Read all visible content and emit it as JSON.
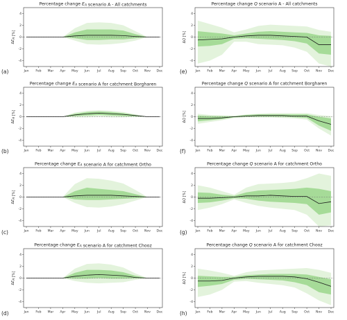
{
  "figure": {
    "colors": {
      "outer_band": "#e3f3dc",
      "inner_band": "#a6db98",
      "median_line": "#1a1a1a",
      "zero_line": "#777777",
      "axis": "#333333"
    },
    "months": [
      "Jan",
      "Feb",
      "Mar",
      "Apr",
      "May",
      "Jun",
      "Jul",
      "Aug",
      "Sep",
      "Oct",
      "Nov",
      "Dec"
    ]
  },
  "chart_data": [
    {
      "type": "area",
      "panel": "(a)",
      "title": "Percentage change E_A scenario A - All catchments",
      "ylabel": "ΔE_A [%]",
      "ylim": [
        -5,
        5
      ],
      "yticks": [
        -4,
        -2,
        0,
        2,
        4
      ],
      "median": [
        0,
        0,
        0,
        0,
        0.2,
        0.3,
        0.3,
        0.3,
        0.25,
        0.1,
        0,
        0
      ],
      "inner": {
        "lower": [
          0,
          0,
          0,
          0,
          -0.2,
          -0.5,
          -0.5,
          -0.4,
          -0.4,
          -0.2,
          0,
          0
        ],
        "upper": [
          0,
          0,
          0,
          0,
          0.8,
          1.3,
          1.3,
          1.3,
          1.1,
          0.5,
          0,
          0
        ]
      },
      "outer": {
        "lower": [
          0,
          0,
          0,
          0,
          -0.6,
          -1.2,
          -1.3,
          -1.2,
          -1.0,
          -0.6,
          0,
          0
        ],
        "upper": [
          0,
          0,
          0,
          0,
          1.5,
          2.4,
          2.5,
          2.4,
          2.0,
          1.0,
          0,
          0
        ]
      }
    },
    {
      "type": "area",
      "panel": "(e)",
      "title": "Percentage change Q scenario A - All catchments",
      "ylabel": "ΔQ [%]",
      "ylim": [
        -5,
        5
      ],
      "yticks": [
        -4,
        -2,
        0,
        2,
        4
      ],
      "median": [
        -0.5,
        -0.4,
        -0.3,
        0,
        0.2,
        0.3,
        0.3,
        0.2,
        0.1,
        0,
        -1.3,
        -1.3
      ],
      "inner": {
        "lower": [
          -1.6,
          -1.5,
          -1.2,
          -0.3,
          -0.2,
          -0.3,
          -0.4,
          -0.5,
          -0.7,
          -1.1,
          -2.8,
          -3.0
        ],
        "upper": [
          1.0,
          0.8,
          0.6,
          0.3,
          0.6,
          0.9,
          1.0,
          0.9,
          0.8,
          0.7,
          0.3,
          0.2
        ]
      },
      "outer": {
        "lower": [
          -4.5,
          -4.0,
          -3.0,
          -0.8,
          -0.8,
          -1.2,
          -1.3,
          -1.4,
          -1.8,
          -2.5,
          -4.5,
          -5.0
        ],
        "upper": [
          2.8,
          2.2,
          1.6,
          0.8,
          1.3,
          1.9,
          2.1,
          2.0,
          1.9,
          1.8,
          1.2,
          0.9
        ]
      }
    },
    {
      "type": "area",
      "panel": "(b)",
      "title": "Percentage change E_A scenario A for catchment Borgharen",
      "ylabel": "ΔE_A [%]",
      "ylim": [
        -5,
        5
      ],
      "yticks": [
        -4,
        -2,
        0,
        2,
        4
      ],
      "median": [
        0,
        0,
        0,
        0,
        0.3,
        0.5,
        0.6,
        0.5,
        0.4,
        0.2,
        0,
        0
      ],
      "inner": {
        "lower": [
          0,
          0,
          0,
          0,
          0.1,
          0.2,
          0.3,
          0.2,
          0.1,
          0.05,
          0,
          0
        ],
        "upper": [
          0,
          0,
          0,
          0,
          0.5,
          0.8,
          0.9,
          0.8,
          0.6,
          0.3,
          0,
          0
        ]
      },
      "outer": {
        "lower": [
          0,
          0,
          0,
          0,
          -0.1,
          -0.1,
          0,
          -0.1,
          -0.1,
          0,
          0,
          0
        ],
        "upper": [
          0,
          0,
          0,
          0,
          0.7,
          1.0,
          1.1,
          1.0,
          0.8,
          0.4,
          0,
          0
        ]
      }
    },
    {
      "type": "area",
      "panel": "(f)",
      "title": "Percentage change Q scenario A for catchment Borgharen",
      "ylabel": "ΔQ [%]",
      "ylim": [
        -5,
        5
      ],
      "yticks": [
        -4,
        -2,
        0,
        2,
        4
      ],
      "median": [
        -0.3,
        -0.3,
        -0.2,
        0,
        0.1,
        0.2,
        0.2,
        0.2,
        0.1,
        0.1,
        -0.7,
        -1.3
      ],
      "inner": {
        "lower": [
          -0.8,
          -0.6,
          -0.4,
          -0.1,
          0,
          0,
          0,
          0,
          -0.1,
          -0.2,
          -1.5,
          -2.4
        ],
        "upper": [
          0.2,
          0.1,
          0.1,
          0.1,
          0.3,
          0.4,
          0.4,
          0.4,
          0.4,
          0.4,
          0,
          -0.3
        ]
      },
      "outer": {
        "lower": [
          -1.2,
          -0.9,
          -0.6,
          -0.2,
          -0.1,
          -0.1,
          -0.1,
          -0.2,
          -0.3,
          -0.5,
          -2.0,
          -3.2
        ],
        "upper": [
          0.5,
          0.3,
          0.2,
          0.1,
          0.4,
          0.5,
          0.6,
          0.6,
          0.6,
          0.6,
          0.3,
          0.1
        ]
      }
    },
    {
      "type": "area",
      "panel": "(c)",
      "title": "Percentage change E_A scenario A for catchment Ortho",
      "ylabel": "ΔE_A [%]",
      "ylim": [
        -5,
        5
      ],
      "yticks": [
        -4,
        -2,
        0,
        2,
        4
      ],
      "median": [
        0,
        0,
        0,
        0,
        0.2,
        0.3,
        0.3,
        0.3,
        0.2,
        0.1,
        0,
        0
      ],
      "inner": {
        "lower": [
          0,
          0,
          0,
          0,
          -0.4,
          -0.5,
          -0.5,
          -0.4,
          -0.3,
          -0.2,
          0,
          0
        ],
        "upper": [
          0,
          0,
          0,
          0,
          1.0,
          1.6,
          1.4,
          1.2,
          1.0,
          0.5,
          0,
          0
        ]
      },
      "outer": {
        "lower": [
          0,
          0,
          0,
          0,
          -1.0,
          -1.7,
          -1.8,
          -1.6,
          -1.2,
          -0.6,
          0,
          0
        ],
        "upper": [
          0,
          0,
          0,
          0,
          2.2,
          3.2,
          3.1,
          2.8,
          2.3,
          1.2,
          0,
          0
        ]
      }
    },
    {
      "type": "area",
      "panel": "(g)",
      "title": "Percentage change Q scenario A for catchment Ortho",
      "ylabel": "ΔQ [%]",
      "ylim": [
        -5,
        5
      ],
      "yticks": [
        -4,
        -2,
        0,
        2,
        4
      ],
      "median": [
        -0.2,
        -0.2,
        -0.1,
        0,
        0.2,
        0.2,
        0.3,
        0.2,
        0.1,
        0.1,
        -1.1,
        -0.8
      ],
      "inner": {
        "lower": [
          -1.0,
          -0.9,
          -0.6,
          -0.2,
          -0.3,
          -0.6,
          -0.8,
          -0.9,
          -1.0,
          -1.2,
          -3.0,
          -2.6
        ],
        "upper": [
          0.8,
          0.7,
          0.4,
          0.2,
          0.8,
          1.1,
          1.2,
          1.3,
          1.4,
          1.6,
          1.4,
          1.0
        ]
      },
      "outer": {
        "lower": [
          -2.2,
          -1.8,
          -1.2,
          -0.4,
          -1.0,
          -1.5,
          -1.8,
          -2.0,
          -2.2,
          -3.0,
          -5.0,
          -4.8
        ],
        "upper": [
          2.0,
          1.6,
          1.0,
          0.4,
          1.6,
          2.2,
          2.3,
          2.4,
          2.6,
          3.2,
          4.0,
          3.6
        ]
      }
    },
    {
      "type": "area",
      "panel": "(d)",
      "title": "Percentage change E_A scenario A for catchment Chooz",
      "ylabel": "ΔE_A [%]",
      "ylim": [
        -5,
        5
      ],
      "yticks": [
        -4,
        -2,
        0,
        2,
        4
      ],
      "median": [
        0,
        0,
        0,
        0,
        0.3,
        0.5,
        0.6,
        0.5,
        0.4,
        0.1,
        0,
        0
      ],
      "inner": {
        "lower": [
          0,
          0,
          0,
          0,
          -0.1,
          -0.1,
          0,
          -0.1,
          -0.1,
          -0.05,
          0,
          0
        ],
        "upper": [
          0,
          0,
          0,
          0,
          0.9,
          1.4,
          1.4,
          1.3,
          1.0,
          0.4,
          0,
          0
        ]
      },
      "outer": {
        "lower": [
          0,
          0,
          0,
          0,
          -0.5,
          -0.8,
          -0.9,
          -0.8,
          -0.7,
          -0.3,
          0,
          0
        ],
        "upper": [
          0,
          0,
          0,
          0,
          1.6,
          2.4,
          2.5,
          2.3,
          1.8,
          0.8,
          0,
          0
        ]
      }
    },
    {
      "type": "area",
      "panel": "(h)",
      "title": "Percentage change Q scenario A for catchment Chooz",
      "ylabel": "ΔQ [%]",
      "ylim": [
        -5,
        5
      ],
      "yticks": [
        -4,
        -2,
        0,
        2,
        4
      ],
      "median": [
        -0.5,
        -0.5,
        -0.4,
        0,
        0.2,
        0.3,
        0.3,
        0.3,
        0.2,
        -0.1,
        -0.7,
        -1.4
      ],
      "inner": {
        "lower": [
          -1.5,
          -1.3,
          -1.0,
          -0.3,
          -0.1,
          -0.2,
          -0.3,
          -0.4,
          -0.7,
          -1.2,
          -2.4,
          -2.8
        ],
        "upper": [
          0.4,
          0.3,
          0.2,
          0.2,
          0.5,
          0.6,
          0.7,
          0.7,
          0.7,
          0.6,
          0.2,
          -0.2
        ]
      },
      "outer": {
        "lower": [
          -3.2,
          -2.8,
          -2.0,
          -0.6,
          -0.5,
          -0.8,
          -1.0,
          -1.2,
          -1.6,
          -2.6,
          -3.8,
          -4.6
        ],
        "upper": [
          1.6,
          1.3,
          0.9,
          0.4,
          1.0,
          1.3,
          1.4,
          1.5,
          1.6,
          1.7,
          1.4,
          0.9
        ]
      }
    }
  ]
}
